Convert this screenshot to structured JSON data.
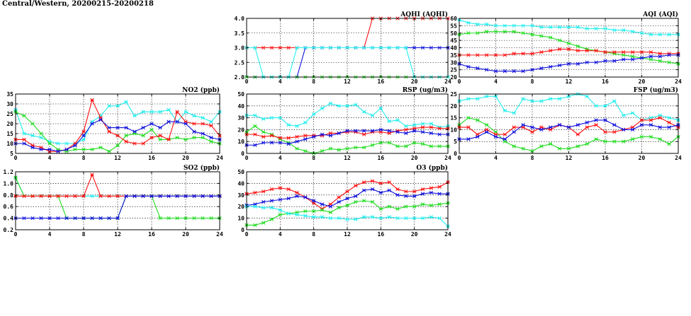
{
  "page": {
    "title": "Central/Western, 20200215-20200218"
  },
  "colors": {
    "red": "#ff1010",
    "blue": "#1010dd",
    "green": "#22dd22",
    "cyan": "#22eeee"
  },
  "chart_data": [
    {
      "id": "aqhi",
      "type": "line",
      "title": "AQHI (AQHI)",
      "xlim": [
        0,
        24
      ],
      "ylim": [
        2.0,
        4.0
      ],
      "xticks": [
        0,
        4,
        8,
        12,
        16,
        20,
        24
      ],
      "yticks": [
        2.0,
        2.5,
        3.0,
        3.5,
        4.0
      ],
      "ytick_labels": [
        "2.0",
        "2.5",
        "3.0",
        "3.5",
        "4.0"
      ],
      "grid": true,
      "series": [
        {
          "color": "red",
          "values": [
            3,
            3,
            3,
            3,
            3,
            3,
            3,
            3,
            3,
            3,
            3,
            3,
            3,
            3,
            3,
            4,
            4,
            4,
            4,
            4,
            4,
            4,
            4,
            4,
            4
          ]
        },
        {
          "color": "blue",
          "values": [
            2,
            2,
            2,
            2,
            2,
            2,
            2,
            3,
            3,
            3,
            3,
            3,
            3,
            3,
            3,
            3,
            3,
            3,
            3,
            3,
            3,
            3,
            3,
            3,
            3
          ]
        },
        {
          "color": "green",
          "values": [
            2,
            2,
            2,
            2,
            2,
            2,
            2,
            2,
            2,
            2,
            2,
            2,
            2,
            2,
            2,
            2,
            2,
            2,
            2,
            2,
            2,
            2,
            2,
            2,
            2
          ]
        },
        {
          "color": "cyan",
          "values": [
            3,
            3,
            2,
            2,
            2,
            2,
            3,
            3,
            3,
            3,
            3,
            3,
            3,
            3,
            3,
            3,
            3,
            3,
            3,
            3,
            2,
            2,
            2,
            2,
            2
          ]
        }
      ]
    },
    {
      "id": "aqi",
      "type": "line",
      "title": "AQI (AQI)",
      "xlim": [
        0,
        24
      ],
      "ylim": [
        20,
        60
      ],
      "xticks": [
        0,
        4,
        8,
        12,
        16,
        20,
        24
      ],
      "yticks": [
        20,
        25,
        30,
        35,
        40,
        45,
        50,
        55,
        60
      ],
      "ytick_labels": [
        "20",
        "25",
        "30",
        "35",
        "40",
        "45",
        "50",
        "55",
        "60"
      ],
      "grid": true,
      "series": [
        {
          "color": "cyan",
          "values": [
            59,
            57,
            56,
            56,
            55,
            55,
            55,
            55,
            55,
            54,
            54,
            54,
            54,
            54,
            53,
            53,
            53,
            52,
            52,
            51,
            50,
            49,
            49,
            49,
            49
          ]
        },
        {
          "color": "green",
          "values": [
            49,
            50,
            50,
            51,
            51,
            51,
            51,
            50,
            49,
            48,
            47,
            45,
            43,
            41,
            39,
            38,
            37,
            36,
            35,
            34,
            33,
            32,
            31,
            30,
            29
          ]
        },
        {
          "color": "red",
          "values": [
            35,
            35,
            35,
            35,
            35,
            35,
            36,
            36,
            36,
            37,
            38,
            39,
            39,
            38,
            38,
            38,
            37,
            37,
            37,
            37,
            37,
            37,
            36,
            36,
            36
          ]
        },
        {
          "color": "blue",
          "values": [
            29,
            27,
            26,
            25,
            24,
            24,
            24,
            24,
            25,
            26,
            27,
            28,
            29,
            29,
            30,
            30,
            31,
            31,
            32,
            32,
            33,
            34,
            34,
            35,
            35
          ]
        }
      ]
    },
    {
      "id": "no2",
      "type": "line",
      "title": "NO2 (ppb)",
      "xlim": [
        0,
        24
      ],
      "ylim": [
        5,
        35
      ],
      "xticks": [
        0,
        4,
        8,
        12,
        16,
        20,
        24
      ],
      "yticks": [
        5,
        10,
        15,
        20,
        25,
        30,
        35
      ],
      "ytick_labels": [
        "5",
        "10",
        "15",
        "20",
        "25",
        "30",
        "35"
      ],
      "grid": true,
      "series": [
        {
          "color": "cyan",
          "values": [
            27,
            15,
            14,
            13,
            11,
            10,
            10,
            10,
            12,
            21,
            24,
            29,
            29,
            31,
            24,
            26,
            26,
            26,
            27,
            21,
            26,
            24,
            23,
            21,
            26
          ]
        },
        {
          "color": "green",
          "values": [
            26,
            24,
            20,
            15,
            10,
            7,
            6,
            7,
            7,
            7,
            8,
            6,
            9,
            14,
            15,
            14,
            17,
            12,
            12,
            13,
            12,
            13,
            13,
            11,
            10
          ]
        },
        {
          "color": "red",
          "values": [
            12,
            12,
            9,
            8,
            6,
            6,
            7,
            10,
            16,
            32,
            23,
            16,
            14,
            11,
            10,
            10,
            13,
            14,
            12,
            26,
            21,
            20,
            20,
            19,
            14
          ]
        },
        {
          "color": "blue",
          "values": [
            10,
            10,
            8,
            7,
            7,
            6,
            7,
            9,
            14,
            20,
            22,
            18,
            18,
            18,
            16,
            18,
            20,
            18,
            21,
            21,
            20,
            16,
            15,
            13,
            12
          ]
        }
      ]
    },
    {
      "id": "rsp",
      "type": "line",
      "title": "RSP (ug/m3)",
      "xlim": [
        0,
        24
      ],
      "ylim": [
        0,
        50
      ],
      "xticks": [
        0,
        4,
        8,
        12,
        16,
        20,
        24
      ],
      "yticks": [
        0,
        10,
        20,
        30,
        40,
        50
      ],
      "ytick_labels": [
        "0",
        "10",
        "20",
        "30",
        "40",
        "50"
      ],
      "grid": true,
      "series": [
        {
          "color": "cyan",
          "values": [
            32,
            32,
            29,
            30,
            30,
            24,
            23,
            26,
            33,
            38,
            42,
            40,
            40,
            41,
            35,
            32,
            38,
            27,
            28,
            23,
            24,
            25,
            25,
            22,
            23
          ]
        },
        {
          "color": "green",
          "values": [
            18,
            23,
            18,
            16,
            12,
            9,
            4,
            2,
            0,
            2,
            4,
            3,
            4,
            5,
            5,
            7,
            9,
            9,
            6,
            6,
            9,
            8,
            6,
            6,
            6
          ]
        },
        {
          "color": "red",
          "values": [
            16,
            16,
            14,
            15,
            13,
            13,
            14,
            15,
            15,
            15,
            17,
            17,
            18,
            18,
            16,
            18,
            18,
            17,
            19,
            20,
            21,
            22,
            22,
            21,
            21
          ]
        },
        {
          "color": "blue",
          "values": [
            7,
            7,
            9,
            9,
            9,
            8,
            10,
            12,
            14,
            16,
            15,
            17,
            19,
            19,
            19,
            19,
            20,
            19,
            18,
            17,
            19,
            18,
            17,
            16,
            16
          ]
        }
      ]
    },
    {
      "id": "fsp",
      "type": "line",
      "title": "FSP (ug/m3)",
      "xlim": [
        0,
        24
      ],
      "ylim": [
        0,
        25
      ],
      "xticks": [
        0,
        4,
        8,
        12,
        16,
        20,
        24
      ],
      "yticks": [
        0,
        5,
        10,
        15,
        20,
        25
      ],
      "ytick_labels": [
        "0",
        "5",
        "10",
        "15",
        "20",
        "25"
      ],
      "grid": true,
      "series": [
        {
          "color": "cyan",
          "values": [
            22,
            23,
            23,
            24,
            24,
            18,
            17,
            23,
            22,
            22,
            23,
            23,
            24,
            25,
            24,
            20,
            20,
            22,
            16,
            17,
            14,
            15,
            16,
            15,
            14
          ]
        },
        {
          "color": "green",
          "values": [
            12,
            15,
            14,
            12,
            9,
            5,
            3,
            2,
            1,
            3,
            4,
            2,
            2,
            3,
            4,
            6,
            5,
            5,
            5,
            6,
            7,
            7,
            6,
            4,
            7
          ]
        },
        {
          "color": "red",
          "values": [
            11,
            11,
            8,
            10,
            8,
            8,
            11,
            11,
            9,
            11,
            10,
            12,
            11,
            8,
            11,
            12,
            9,
            9,
            10,
            11,
            14,
            14,
            15,
            13,
            11
          ]
        },
        {
          "color": "blue",
          "values": [
            6,
            6,
            7,
            9,
            7,
            6,
            9,
            12,
            11,
            10,
            11,
            12,
            11,
            12,
            13,
            14,
            14,
            12,
            10,
            10,
            12,
            12,
            11,
            11,
            12
          ]
        }
      ]
    },
    {
      "id": "so2",
      "type": "line",
      "title": "SO2 (ppb)",
      "xlim": [
        0,
        24
      ],
      "ylim": [
        0.2,
        1.2
      ],
      "xticks": [
        0,
        4,
        8,
        12,
        16,
        20,
        24
      ],
      "yticks": [
        0.2,
        0.4,
        0.6,
        0.8,
        1.0,
        1.2
      ],
      "ytick_labels": [
        "0.2",
        "0.4",
        "0.6",
        "0.8",
        "1.0",
        "1.2"
      ],
      "grid": true,
      "series": [
        {
          "color": "cyan",
          "values": [
            1.1,
            0.78,
            0.78,
            0.78,
            0.78,
            0.78,
            0.78,
            0.78,
            0.78,
            0.78,
            0.78,
            0.78,
            0.78,
            0.78,
            0.78,
            0.78,
            0.78,
            0.78,
            0.78,
            0.78,
            0.78,
            0.78,
            0.78,
            0.78,
            0.78
          ]
        },
        {
          "color": "green",
          "values": [
            1.1,
            0.78,
            0.78,
            0.78,
            0.78,
            0.78,
            0.4,
            0.4,
            0.4,
            0.4,
            0.4,
            0.4,
            0.4,
            0.78,
            0.78,
            0.78,
            0.78,
            0.4,
            0.4,
            0.4,
            0.4,
            0.4,
            0.4,
            0.4,
            0.4
          ]
        },
        {
          "color": "red",
          "values": [
            0.78,
            0.78,
            0.78,
            0.78,
            0.78,
            0.78,
            0.78,
            0.78,
            0.78,
            1.15,
            0.78,
            0.78,
            0.78,
            0.78,
            0.78,
            0.78,
            0.78,
            0.78,
            0.78,
            0.78,
            0.78,
            0.78,
            0.78,
            0.78,
            0.78
          ]
        },
        {
          "color": "blue",
          "values": [
            0.4,
            0.4,
            0.4,
            0.4,
            0.4,
            0.4,
            0.4,
            0.4,
            0.4,
            0.4,
            0.4,
            0.4,
            0.4,
            0.78,
            0.78,
            0.78,
            0.78,
            0.78,
            0.78,
            0.78,
            0.78,
            0.78,
            0.78,
            0.78,
            0.78
          ]
        }
      ]
    },
    {
      "id": "o3",
      "type": "line",
      "title": "O3 (ppb)",
      "xlim": [
        0,
        24
      ],
      "ylim": [
        0,
        50
      ],
      "xticks": [
        0,
        4,
        8,
        12,
        16,
        20,
        24
      ],
      "yticks": [
        0,
        10,
        20,
        30,
        40,
        50
      ],
      "ytick_labels": [
        "0",
        "10",
        "20",
        "30",
        "40",
        "50"
      ],
      "grid": true,
      "series": [
        {
          "color": "red",
          "values": [
            31,
            32,
            33,
            35,
            36,
            35,
            32,
            28,
            23,
            18,
            22,
            28,
            33,
            38,
            41,
            42,
            40,
            41,
            35,
            33,
            33,
            35,
            36,
            37,
            41
          ]
        },
        {
          "color": "blue",
          "values": [
            21,
            22,
            24,
            25,
            26,
            27,
            29,
            28,
            25,
            22,
            20,
            24,
            27,
            29,
            34,
            35,
            32,
            34,
            30,
            29,
            29,
            31,
            32,
            31,
            31
          ]
        },
        {
          "color": "green",
          "values": [
            4,
            4,
            6,
            9,
            13,
            14,
            15,
            16,
            16,
            17,
            15,
            19,
            21,
            24,
            25,
            24,
            18,
            20,
            18,
            20,
            20,
            22,
            21,
            22,
            23
          ]
        },
        {
          "color": "cyan",
          "values": [
            20,
            20,
            19,
            19,
            17,
            14,
            13,
            12,
            11,
            11,
            10,
            10,
            9,
            9,
            11,
            11,
            10,
            11,
            10,
            10,
            10,
            10,
            11,
            10,
            3
          ]
        }
      ]
    }
  ]
}
